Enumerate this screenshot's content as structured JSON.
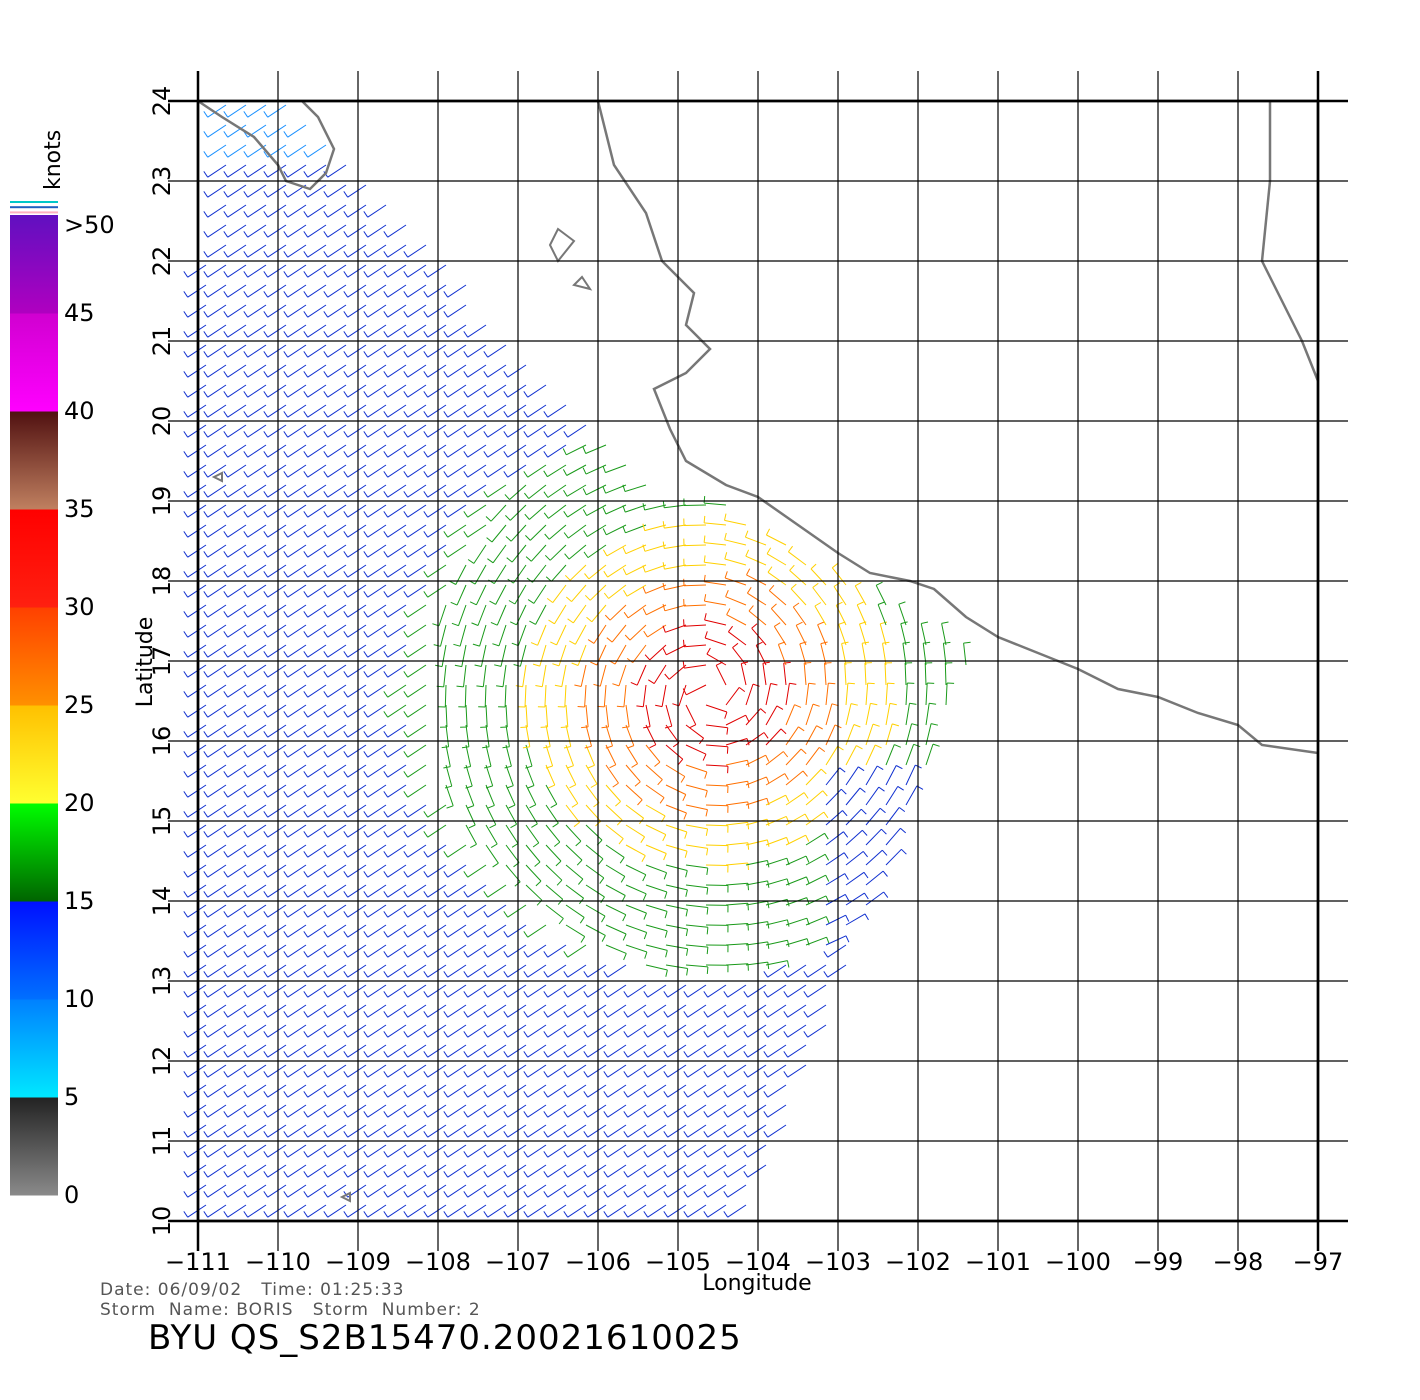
{
  "meta": {
    "date_label": "Date:",
    "date": "06/09/02",
    "time_label": "Time:",
    "time": "01:25:33",
    "storm_name_label": "Storm  Name:",
    "storm_name": "BORIS",
    "storm_number_label": "Storm  Number:",
    "storm_number": "2",
    "product_title": "BYU  QS_S2B15470.20021610025"
  },
  "axes": {
    "xlabel": "Longitude",
    "ylabel": "Latitude",
    "lon_min": -111,
    "lon_max": -97,
    "lat_min": 10,
    "lat_max": 24,
    "lon_ticks": [
      "-111",
      "-110",
      "-109",
      "-108",
      "-107",
      "-106",
      "-105",
      "-104",
      "-103",
      "-102",
      "-101",
      "-100",
      "-99",
      "-98",
      "-97"
    ],
    "lat_ticks": [
      "10",
      "11",
      "12",
      "13",
      "14",
      "15",
      "16",
      "17",
      "18",
      "19",
      "20",
      "21",
      "22",
      "23",
      "24"
    ],
    "grid": true
  },
  "colorbar": {
    "unit_label": "knots",
    "labels": [
      "0",
      "5",
      "10",
      "15",
      "20",
      "25",
      "30",
      "35",
      "40",
      "45",
      ">50"
    ],
    "bands": [
      {
        "from": 0,
        "to": 5,
        "top": "#222222",
        "bottom": "#8a8a8a"
      },
      {
        "from": 5,
        "to": 10,
        "top": "#0080ff",
        "bottom": "#00e8ff"
      },
      {
        "from": 10,
        "to": 15,
        "top": "#0010ff",
        "bottom": "#0070ff"
      },
      {
        "from": 15,
        "to": 20,
        "top": "#00ff00",
        "bottom": "#006400"
      },
      {
        "from": 20,
        "to": 25,
        "top": "#ffc000",
        "bottom": "#ffff30"
      },
      {
        "from": 25,
        "to": 30,
        "top": "#ff4000",
        "bottom": "#ff9000"
      },
      {
        "from": 30,
        "to": 35,
        "top": "#ff0000",
        "bottom": "#ff2010"
      },
      {
        "from": 35,
        "to": 40,
        "top": "#501010",
        "bottom": "#c08060"
      },
      {
        "from": 40,
        "to": 45,
        "top": "#d000d0",
        "bottom": "#ff00ff"
      },
      {
        "from": 45,
        "to": 50,
        "top": "#6010c0",
        "bottom": "#b000c0"
      }
    ]
  },
  "colors": {
    "coastline": "#777777",
    "grid": "#000000",
    "wind_0_5": "#555555",
    "wind_5_10": "#1a90ff",
    "wind_10_15": "#1030d0",
    "wind_15_20": "#1a9a1a",
    "wind_20_25": "#ffd000",
    "wind_25_30": "#ff7000",
    "wind_30_35": "#e00000",
    "wind_40_45": "#c000c0"
  },
  "map_features": {
    "coast_mainland": [
      [
        -106.0,
        24.0
      ],
      [
        -105.8,
        23.2
      ],
      [
        -105.4,
        22.6
      ],
      [
        -105.2,
        22.0
      ],
      [
        -104.8,
        21.6
      ],
      [
        -104.9,
        21.2
      ],
      [
        -104.6,
        20.9
      ],
      [
        -104.9,
        20.6
      ],
      [
        -105.3,
        20.4
      ],
      [
        -105.1,
        19.9
      ],
      [
        -104.9,
        19.5
      ],
      [
        -104.4,
        19.2
      ],
      [
        -104.0,
        19.05
      ],
      [
        -103.5,
        18.7
      ],
      [
        -103.0,
        18.35
      ],
      [
        -102.6,
        18.1
      ],
      [
        -102.1,
        18.0
      ],
      [
        -101.8,
        17.9
      ],
      [
        -101.4,
        17.55
      ],
      [
        -101.0,
        17.3
      ],
      [
        -100.5,
        17.1
      ],
      [
        -100.0,
        16.9
      ],
      [
        -99.5,
        16.65
      ],
      [
        -99.0,
        16.55
      ],
      [
        -98.5,
        16.35
      ],
      [
        -98.0,
        16.2
      ],
      [
        -97.7,
        15.95
      ],
      [
        -97.0,
        15.85
      ]
    ],
    "coast_baja": [
      [
        -111.0,
        24.0
      ],
      [
        -110.7,
        23.8
      ],
      [
        -110.3,
        23.55
      ],
      [
        -110.0,
        23.2
      ],
      [
        -109.9,
        23.0
      ],
      [
        -109.6,
        22.9
      ],
      [
        -109.4,
        23.1
      ],
      [
        -109.3,
        23.4
      ],
      [
        -109.5,
        23.8
      ],
      [
        -109.7,
        24.0
      ]
    ],
    "coast_east": [
      [
        -97.6,
        24.0
      ],
      [
        -97.6,
        23.0
      ],
      [
        -97.7,
        22.0
      ],
      [
        -97.45,
        21.5
      ],
      [
        -97.2,
        21.0
      ],
      [
        -97.0,
        20.5
      ]
    ],
    "islands": [
      [
        [
          -106.6,
          22.2
        ],
        [
          -106.5,
          22.4
        ],
        [
          -106.3,
          22.25
        ],
        [
          -106.5,
          22.0
        ]
      ],
      [
        [
          -106.3,
          21.7
        ],
        [
          -106.2,
          21.8
        ],
        [
          -106.1,
          21.65
        ]
      ],
      [
        [
          -110.8,
          19.3
        ],
        [
          -110.7,
          19.35
        ],
        [
          -110.7,
          19.25
        ]
      ],
      [
        [
          -109.2,
          10.3
        ],
        [
          -109.1,
          10.35
        ],
        [
          -109.1,
          10.25
        ]
      ]
    ]
  }
}
